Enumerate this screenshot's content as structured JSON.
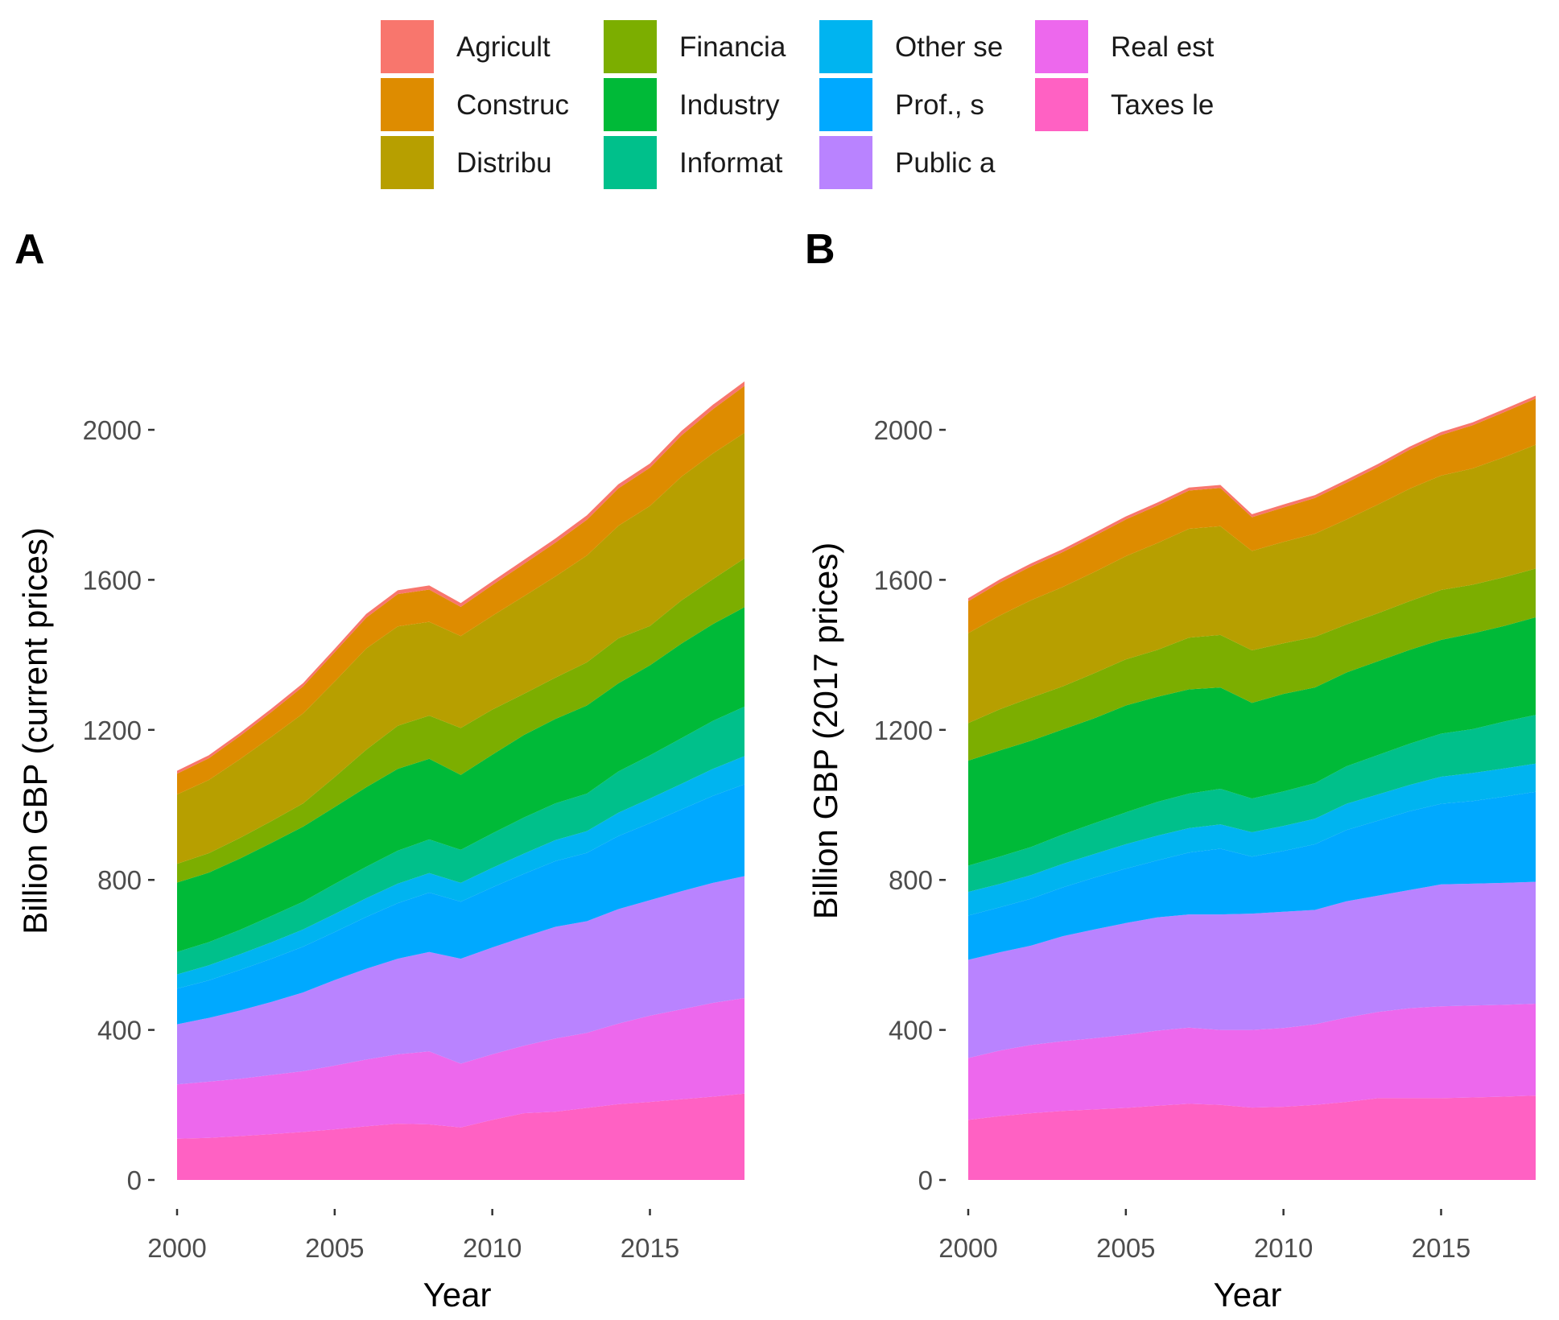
{
  "legend": {
    "items": [
      {
        "label": "Agricult",
        "color": "#F8766D"
      },
      {
        "label": "Construc",
        "color": "#DE8C00"
      },
      {
        "label": "Distribu",
        "color": "#B79F00"
      },
      {
        "label": "Financia",
        "color": "#7CAE00"
      },
      {
        "label": "Industry",
        "color": "#00BA38"
      },
      {
        "label": "Informat",
        "color": "#00C08B"
      },
      {
        "label": "Other se",
        "color": "#00B4F0"
      },
      {
        "label": "Prof., s",
        "color": "#00A9FF"
      },
      {
        "label": "Public a",
        "color": "#B983FF"
      },
      {
        "label": "Real est",
        "color": "#ED68ED"
      },
      {
        "label": "Taxes le",
        "color": "#FF61C3"
      }
    ]
  },
  "chart_data": [
    {
      "panel": "A",
      "type": "area",
      "stacked": true,
      "xlabel": "Year",
      "ylabel": "Billion GBP (current prices)",
      "xlim": [
        2000,
        2018
      ],
      "ylim": [
        0,
        2100
      ],
      "xticks": [
        2000,
        2005,
        2010,
        2015
      ],
      "yticks": [
        0,
        400,
        800,
        1200,
        1600,
        2000
      ],
      "x": [
        2000,
        2001,
        2002,
        2003,
        2004,
        2005,
        2006,
        2007,
        2008,
        2009,
        2010,
        2011,
        2012,
        2013,
        2014,
        2015,
        2016,
        2017,
        2018
      ],
      "series": [
        {
          "name": "Taxes le",
          "values": [
            110,
            112,
            117,
            122,
            128,
            135,
            143,
            150,
            148,
            140,
            160,
            178,
            182,
            192,
            202,
            208,
            215,
            222,
            230
          ]
        },
        {
          "name": "Real est",
          "values": [
            145,
            150,
            153,
            158,
            162,
            170,
            178,
            185,
            195,
            170,
            175,
            180,
            195,
            200,
            215,
            230,
            240,
            250,
            255
          ]
        },
        {
          "name": "Public a",
          "values": [
            160,
            170,
            182,
            195,
            210,
            228,
            242,
            255,
            265,
            280,
            285,
            290,
            298,
            298,
            305,
            308,
            315,
            320,
            325
          ]
        },
        {
          "name": "Prof., s",
          "values": [
            95,
            100,
            108,
            115,
            122,
            128,
            138,
            148,
            158,
            152,
            160,
            168,
            175,
            182,
            195,
            205,
            218,
            232,
            245
          ]
        },
        {
          "name": "Other se",
          "values": [
            38,
            40,
            42,
            44,
            46,
            48,
            50,
            52,
            52,
            50,
            52,
            54,
            56,
            58,
            62,
            66,
            68,
            72,
            75
          ]
        },
        {
          "name": "Informat",
          "values": [
            60,
            62,
            65,
            70,
            74,
            80,
            84,
            88,
            90,
            88,
            92,
            96,
            98,
            100,
            110,
            115,
            122,
            128,
            132
          ]
        },
        {
          "name": "Industry",
          "values": [
            185,
            185,
            190,
            195,
            200,
            205,
            212,
            218,
            215,
            200,
            210,
            220,
            225,
            235,
            235,
            240,
            252,
            258,
            265
          ]
        },
        {
          "name": "Financia",
          "values": [
            50,
            52,
            55,
            58,
            62,
            80,
            100,
            115,
            115,
            125,
            120,
            110,
            110,
            115,
            120,
            105,
            115,
            120,
            130
          ]
        },
        {
          "name": "Distribu",
          "values": [
            185,
            195,
            210,
            225,
            240,
            255,
            270,
            265,
            250,
            245,
            250,
            260,
            270,
            285,
            300,
            320,
            330,
            335,
            335
          ]
        },
        {
          "name": "Construc",
          "values": [
            55,
            58,
            62,
            66,
            72,
            78,
            82,
            86,
            86,
            78,
            82,
            86,
            90,
            95,
            100,
            102,
            110,
            118,
            125
          ]
        },
        {
          "name": "Agricult",
          "values": [
            8,
            8,
            8,
            9,
            9,
            9,
            10,
            10,
            11,
            10,
            10,
            11,
            11,
            12,
            11,
            11,
            12,
            12,
            12
          ]
        }
      ]
    },
    {
      "panel": "B",
      "type": "area",
      "stacked": true,
      "xlabel": "Year",
      "ylabel": "Billion GBP (2017 prices)",
      "xlim": [
        2000,
        2018
      ],
      "ylim": [
        0,
        2100
      ],
      "xticks": [
        2000,
        2005,
        2010,
        2015
      ],
      "yticks": [
        0,
        400,
        800,
        1200,
        1600,
        2000
      ],
      "x": [
        2000,
        2001,
        2002,
        2003,
        2004,
        2005,
        2006,
        2007,
        2008,
        2009,
        2010,
        2011,
        2012,
        2013,
        2014,
        2015,
        2016,
        2017,
        2018
      ],
      "series": [
        {
          "name": "Taxes le",
          "values": [
            160,
            170,
            178,
            184,
            188,
            192,
            198,
            203,
            200,
            193,
            195,
            200,
            208,
            218,
            218,
            218,
            220,
            222,
            225
          ]
        },
        {
          "name": "Real est",
          "values": [
            165,
            175,
            182,
            186,
            190,
            195,
            200,
            203,
            200,
            207,
            210,
            215,
            225,
            230,
            240,
            245,
            245,
            245,
            245
          ]
        },
        {
          "name": "Public a",
          "values": [
            262,
            262,
            265,
            280,
            290,
            298,
            302,
            302,
            308,
            310,
            310,
            305,
            310,
            310,
            315,
            325,
            325,
            325,
            325
          ]
        },
        {
          "name": "Prof., s",
          "values": [
            118,
            120,
            125,
            130,
            138,
            145,
            152,
            165,
            175,
            152,
            162,
            175,
            190,
            200,
            210,
            215,
            220,
            230,
            240
          ]
        },
        {
          "name": "Other se",
          "values": [
            63,
            62,
            63,
            63,
            63,
            65,
            66,
            65,
            65,
            65,
            67,
            68,
            70,
            70,
            70,
            72,
            75,
            75,
            75
          ]
        },
        {
          "name": "Informat",
          "values": [
            70,
            73,
            75,
            78,
            82,
            85,
            90,
            92,
            95,
            90,
            92,
            95,
            100,
            105,
            110,
            115,
            117,
            125,
            130
          ]
        },
        {
          "name": "Industry",
          "values": [
            280,
            283,
            283,
            280,
            280,
            285,
            280,
            278,
            270,
            255,
            260,
            255,
            250,
            250,
            250,
            250,
            255,
            255,
            260
          ]
        },
        {
          "name": "Financia",
          "values": [
            100,
            110,
            115,
            115,
            120,
            123,
            125,
            138,
            140,
            140,
            135,
            135,
            128,
            128,
            130,
            133,
            130,
            130,
            130
          ]
        },
        {
          "name": "Distribu",
          "values": [
            240,
            250,
            260,
            265,
            270,
            275,
            285,
            290,
            290,
            265,
            270,
            275,
            280,
            290,
            300,
            305,
            310,
            320,
            330
          ]
        },
        {
          "name": "Construc",
          "values": [
            85,
            88,
            90,
            93,
            96,
            98,
            100,
            102,
            102,
            90,
            92,
            95,
            98,
            100,
            104,
            108,
            115,
            120,
            123
          ]
        },
        {
          "name": "Agricult",
          "values": [
            8,
            8,
            8,
            8,
            8,
            8,
            8,
            8,
            8,
            8,
            8,
            8,
            8,
            8,
            8,
            8,
            8,
            8,
            8
          ]
        }
      ]
    }
  ]
}
